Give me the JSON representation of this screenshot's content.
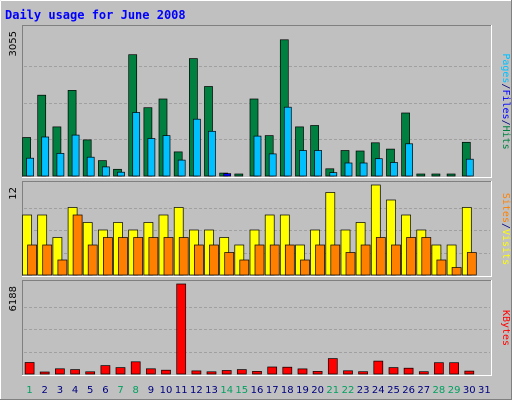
{
  "chart_data": {
    "title": "Daily usage for June 2008",
    "type": "bar",
    "days": [
      "1",
      "2",
      "3",
      "4",
      "5",
      "6",
      "7",
      "8",
      "9",
      "10",
      "11",
      "12",
      "13",
      "14",
      "15",
      "16",
      "17",
      "18",
      "19",
      "20",
      "21",
      "22",
      "23",
      "24",
      "25",
      "26",
      "27",
      "28",
      "29",
      "30",
      "31"
    ],
    "weekend_days": [
      "1",
      "7",
      "8",
      "14",
      "15",
      "21",
      "22",
      "28",
      "29"
    ],
    "panels": [
      {
        "id": "hits-files-pages",
        "ymax": 3055,
        "ymax_label": "3055",
        "legend": [
          {
            "text": "Pages",
            "color": "#00c0ff"
          },
          {
            "text": "/",
            "color": "#000080"
          },
          {
            "text": "Files",
            "color": "#0000ff"
          },
          {
            "text": "/",
            "color": "#000080"
          },
          {
            "text": "Hits",
            "color": "#008040"
          }
        ],
        "series": [
          {
            "name": "Hits",
            "color": "#008040",
            "values": [
              800,
              1680,
              1020,
              1780,
              750,
              320,
              140,
              2520,
              1420,
              1600,
              500,
              2440,
              1860,
              60,
              30,
              1600,
              840,
              2830,
              1020,
              1050,
              150,
              530,
              520,
              690,
              560,
              1310,
              40,
              30,
              30,
              700,
              0
            ]
          },
          {
            "name": "Files",
            "color": "#0000ff",
            "values": [
              0,
              0,
              0,
              0,
              0,
              0,
              0,
              0,
              0,
              0,
              0,
              0,
              0,
              50,
              0,
              0,
              0,
              0,
              0,
              0,
              0,
              0,
              0,
              0,
              0,
              0,
              0,
              0,
              0,
              0,
              0
            ]
          },
          {
            "name": "Pages",
            "color": "#00c0ff",
            "values": [
              370,
              810,
              470,
              850,
              390,
              190,
              80,
              1320,
              780,
              840,
              330,
              1180,
              930,
              0,
              0,
              830,
              460,
              1430,
              530,
              530,
              70,
              270,
              270,
              360,
              280,
              670,
              0,
              0,
              0,
              350,
              0
            ]
          }
        ]
      },
      {
        "id": "visits-sites",
        "ymax": 12,
        "ymax_label": "12",
        "legend": [
          {
            "text": "Sites",
            "color": "#ff8000"
          },
          {
            "text": "/",
            "color": "#000080"
          },
          {
            "text": "Visits",
            "color": "#ffff00"
          }
        ],
        "series": [
          {
            "name": "Visits",
            "color": "#ffff00",
            "values": [
              8,
              8,
              5,
              9,
              7,
              6,
              7,
              6,
              7,
              8,
              9,
              6,
              6,
              5,
              4,
              6,
              8,
              8,
              4,
              6,
              11,
              6,
              7,
              12,
              10,
              8,
              6,
              4,
              4,
              9,
              0
            ]
          },
          {
            "name": "Sites",
            "color": "#ff8000",
            "values": [
              4,
              4,
              2,
              8,
              4,
              5,
              5,
              5,
              5,
              5,
              5,
              4,
              4,
              3,
              2,
              4,
              4,
              4,
              2,
              4,
              4,
              3,
              4,
              5,
              4,
              5,
              5,
              2,
              1,
              3,
              0
            ]
          }
        ]
      },
      {
        "id": "kbytes",
        "ymax": 6188,
        "ymax_label": "6188",
        "legend": [
          {
            "text": "KBytes",
            "color": "#ff0000"
          }
        ],
        "series": [
          {
            "name": "KBytes",
            "color": "#ff0000",
            "values": [
              790,
              120,
              360,
              300,
              150,
              580,
              440,
              840,
              360,
              260,
              6188,
              210,
              150,
              240,
              300,
              180,
              480,
              470,
              350,
              180,
              1060,
              220,
              160,
              890,
              440,
              400,
              160,
              780,
              780,
              200,
              0
            ]
          }
        ]
      }
    ],
    "colors": {
      "background": "#c0c0c0",
      "title": "#0000ff",
      "weekday_label": "#000080",
      "weekend_label": "#00a060"
    }
  }
}
